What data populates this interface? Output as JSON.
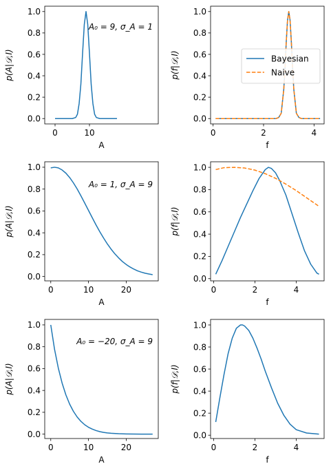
{
  "chart_data": [
    {
      "type": "line",
      "xlabel": "A",
      "ylabel": "p(A|𝒟,I)",
      "annotation": "A₀ = 9, σ_A = 1",
      "xlim": [
        -3.0,
        30.0
      ],
      "ylim": [
        -0.05,
        1.05
      ],
      "xticks": [
        0,
        10
      ],
      "yticks": [
        0.0,
        0.2,
        0.4,
        0.6,
        0.8,
        1.0
      ],
      "series": [
        {
          "color": "#1f77b4",
          "dash": "solid",
          "x": [
            0,
            1,
            2,
            3,
            4,
            5,
            6,
            6.5,
            7,
            7.5,
            8,
            8.5,
            9,
            9.5,
            10,
            10.5,
            11,
            11.5,
            12,
            13,
            14,
            15,
            16,
            17,
            18
          ],
          "y": [
            0,
            0,
            0,
            0,
            0,
            0,
            0.01,
            0.04,
            0.14,
            0.32,
            0.61,
            0.88,
            1.0,
            0.88,
            0.61,
            0.32,
            0.14,
            0.04,
            0.01,
            0,
            0,
            0,
            0,
            0,
            0
          ]
        }
      ]
    },
    {
      "type": "line",
      "xlabel": "f",
      "ylabel": "p(f|𝒟,I)",
      "xlim": [
        -0.1,
        4.4
      ],
      "ylim": [
        -0.05,
        1.05
      ],
      "xticks": [
        0,
        2,
        4
      ],
      "yticks": [
        0.0,
        0.2,
        0.4,
        0.6,
        0.8,
        1.0
      ],
      "legend": {
        "position": "center-right",
        "entries": [
          "Bayesian",
          "Naive"
        ]
      },
      "series": [
        {
          "name": "Bayesian",
          "color": "#1f77b4",
          "dash": "solid",
          "x": [
            0.1,
            0.5,
            1.0,
            1.5,
            2.0,
            2.5,
            2.6,
            2.7,
            2.8,
            2.85,
            2.9,
            2.95,
            3.0,
            3.05,
            3.1,
            3.15,
            3.2,
            3.3,
            3.4,
            3.5,
            3.7,
            4.0,
            4.24
          ],
          "y": [
            0,
            0,
            0,
            0,
            0,
            0,
            0.01,
            0.05,
            0.27,
            0.47,
            0.72,
            0.92,
            1.0,
            0.92,
            0.72,
            0.47,
            0.27,
            0.05,
            0.01,
            0,
            0,
            0,
            0
          ]
        },
        {
          "name": "Naive",
          "color": "#ff7f0e",
          "dash": "dashed",
          "x": [
            0.1,
            0.5,
            1.0,
            1.5,
            2.0,
            2.5,
            2.6,
            2.7,
            2.8,
            2.85,
            2.9,
            2.95,
            3.0,
            3.05,
            3.1,
            3.15,
            3.2,
            3.3,
            3.4,
            3.5,
            3.7,
            4.0,
            4.24
          ],
          "y": [
            0,
            0,
            0,
            0,
            0,
            0,
            0.01,
            0.05,
            0.27,
            0.47,
            0.72,
            0.92,
            1.0,
            0.92,
            0.72,
            0.47,
            0.27,
            0.05,
            0.01,
            0,
            0,
            0,
            0
          ]
        }
      ]
    },
    {
      "type": "line",
      "xlabel": "A",
      "ylabel": "p(A|𝒟,I)",
      "annotation": "A₀ = 1, σ_A = 9",
      "xlim": [
        -1.6,
        28.5
      ],
      "ylim": [
        -0.04,
        1.05
      ],
      "xticks": [
        0,
        10,
        20
      ],
      "yticks": [
        0.0,
        0.2,
        0.4,
        0.6,
        0.8,
        1.0
      ],
      "series": [
        {
          "color": "#1f77b4",
          "dash": "solid",
          "x": [
            0,
            1,
            2,
            3,
            4,
            5,
            6,
            7,
            8,
            9,
            10,
            11,
            12,
            13,
            14,
            15,
            16,
            17,
            18,
            19,
            20,
            21,
            22,
            23,
            24,
            25,
            26,
            27
          ],
          "y": [
            0.994,
            1.0,
            0.994,
            0.975,
            0.946,
            0.906,
            0.857,
            0.801,
            0.738,
            0.672,
            0.605,
            0.538,
            0.472,
            0.41,
            0.352,
            0.298,
            0.25,
            0.207,
            0.17,
            0.137,
            0.11,
            0.087,
            0.068,
            0.052,
            0.04,
            0.03,
            0.023,
            0.017
          ]
        }
      ]
    },
    {
      "type": "line",
      "xlabel": "f",
      "ylabel": "p(f|𝒟,I)",
      "xlim": [
        -0.15,
        5.35
      ],
      "ylim": [
        -0.02,
        1.05
      ],
      "xticks": [
        0,
        2,
        4
      ],
      "yticks": [
        0.0,
        0.2,
        0.4,
        0.6,
        0.8,
        1.0
      ],
      "series": [
        {
          "name": "Bayesian",
          "color": "#1f77b4",
          "dash": "solid",
          "x": [
            0.1,
            0.4,
            0.7,
            1.0,
            1.3,
            1.6,
            1.9,
            2.2,
            2.5,
            2.65,
            2.8,
            3.0,
            3.2,
            3.5,
            3.8,
            4.1,
            4.4,
            4.7,
            5.0,
            5.1
          ],
          "y": [
            0.04,
            0.16,
            0.29,
            0.42,
            0.55,
            0.67,
            0.79,
            0.9,
            0.98,
            1.0,
            0.99,
            0.95,
            0.88,
            0.75,
            0.58,
            0.41,
            0.25,
            0.13,
            0.05,
            0.04
          ]
        },
        {
          "name": "Naive",
          "color": "#ff7f0e",
          "dash": "dashed",
          "x": [
            0.1,
            0.5,
            1.0,
            1.5,
            2.0,
            2.5,
            3.0,
            3.5,
            4.0,
            4.5,
            5.1
          ],
          "y": [
            0.98,
            0.997,
            1.0,
            0.994,
            0.975,
            0.943,
            0.901,
            0.849,
            0.791,
            0.727,
            0.65
          ]
        }
      ]
    },
    {
      "type": "line",
      "xlabel": "A",
      "ylabel": "p(A|𝒟,I)",
      "annotation": "A₀ = −20, σ_A = 9",
      "xlim": [
        -1.6,
        28.5
      ],
      "ylim": [
        -0.04,
        1.05
      ],
      "xticks": [
        0,
        10,
        20
      ],
      "yticks": [
        0.0,
        0.2,
        0.4,
        0.6,
        0.8,
        1.0
      ],
      "series": [
        {
          "color": "#1f77b4",
          "dash": "solid",
          "x": [
            0,
            1,
            2,
            3,
            4,
            5,
            6,
            7,
            8,
            9,
            10,
            11,
            12,
            13,
            14,
            15,
            16,
            18,
            20,
            22,
            24,
            27
          ],
          "y": [
            1.0,
            0.777,
            0.605,
            0.468,
            0.36,
            0.275,
            0.209,
            0.157,
            0.117,
            0.086,
            0.063,
            0.046,
            0.033,
            0.023,
            0.016,
            0.011,
            0.008,
            0.004,
            0.002,
            0.001,
            0.0,
            0.0
          ]
        }
      ]
    },
    {
      "type": "line",
      "xlabel": "f",
      "ylabel": "p(f|𝒟,I)",
      "xlim": [
        -0.15,
        5.35
      ],
      "ylim": [
        -0.03,
        1.05
      ],
      "xticks": [
        0,
        2,
        4
      ],
      "yticks": [
        0.0,
        0.2,
        0.4,
        0.6,
        0.8,
        1.0
      ],
      "series": [
        {
          "name": "Bayesian",
          "color": "#1f77b4",
          "dash": "solid",
          "x": [
            0.1,
            0.3,
            0.5,
            0.7,
            0.9,
            1.1,
            1.3,
            1.4,
            1.5,
            1.7,
            1.9,
            2.1,
            2.3,
            2.5,
            2.8,
            3.1,
            3.4,
            3.7,
            4.0,
            4.5,
            5.1
          ],
          "y": [
            0.12,
            0.34,
            0.55,
            0.74,
            0.88,
            0.97,
            1.0,
            1.0,
            0.99,
            0.95,
            0.88,
            0.79,
            0.69,
            0.58,
            0.43,
            0.29,
            0.18,
            0.1,
            0.05,
            0.02,
            0.01
          ]
        }
      ]
    }
  ]
}
